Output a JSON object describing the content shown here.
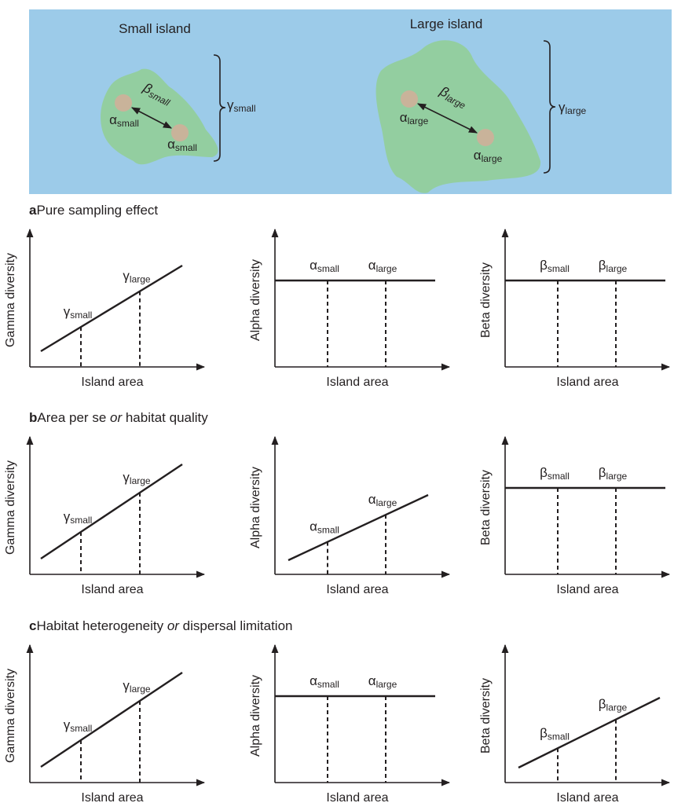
{
  "islands": {
    "small": {
      "title": "Small island",
      "alpha": {
        "symbol": "α",
        "sub": "small"
      },
      "beta": {
        "symbol": "β",
        "sub": "small"
      },
      "gamma": {
        "symbol": "γ",
        "sub": "small"
      }
    },
    "large": {
      "title": "Large island",
      "alpha": {
        "symbol": "α",
        "sub": "large"
      },
      "beta": {
        "symbol": "β",
        "sub": "large"
      },
      "gamma": {
        "symbol": "γ",
        "sub": "large"
      }
    }
  },
  "panels": [
    {
      "letter": "a",
      "title": [
        {
          "text": "Pure sampling effect"
        }
      ],
      "plots": [
        {
          "y_label": "Gamma diversity",
          "x_label": "Island area",
          "labels": [
            {
              "symbol": "γ",
              "sub": "small"
            },
            {
              "symbol": "γ",
              "sub": "large"
            }
          ]
        },
        {
          "y_label": "Alpha diversity",
          "x_label": "Island area",
          "labels": [
            {
              "symbol": "α",
              "sub": "small"
            },
            {
              "symbol": "α",
              "sub": "large"
            }
          ]
        },
        {
          "y_label": "Beta diversity",
          "x_label": "Island area",
          "labels": [
            {
              "symbol": "β",
              "sub": "small"
            },
            {
              "symbol": "β",
              "sub": "large"
            }
          ]
        }
      ]
    },
    {
      "letter": "b",
      "title": [
        {
          "text": "Area per se "
        },
        {
          "text": "or",
          "italic": true
        },
        {
          "text": " habitat quality"
        }
      ],
      "plots": [
        {
          "y_label": "Gamma diversity",
          "x_label": "Island area",
          "labels": [
            {
              "symbol": "γ",
              "sub": "small"
            },
            {
              "symbol": "γ",
              "sub": "large"
            }
          ]
        },
        {
          "y_label": "Alpha diversity",
          "x_label": "Island area",
          "labels": [
            {
              "symbol": "α",
              "sub": "small"
            },
            {
              "symbol": "α",
              "sub": "large"
            }
          ]
        },
        {
          "y_label": "Beta diversity",
          "x_label": "Island area",
          "labels": [
            {
              "symbol": "β",
              "sub": "small"
            },
            {
              "symbol": "β",
              "sub": "large"
            }
          ]
        }
      ]
    },
    {
      "letter": "c",
      "title": [
        {
          "text": "Habitat heterogeneity "
        },
        {
          "text": "or",
          "italic": true
        },
        {
          "text": " dispersal limitation"
        }
      ],
      "plots": [
        {
          "y_label": "Gamma diversity",
          "x_label": "Island area",
          "labels": [
            {
              "symbol": "γ",
              "sub": "small"
            },
            {
              "symbol": "γ",
              "sub": "large"
            }
          ]
        },
        {
          "y_label": "Alpha diversity",
          "x_label": "Island area",
          "labels": [
            {
              "symbol": "α",
              "sub": "small"
            },
            {
              "symbol": "α",
              "sub": "large"
            }
          ]
        },
        {
          "y_label": "Beta diversity",
          "x_label": "Island area",
          "labels": [
            {
              "symbol": "β",
              "sub": "small"
            },
            {
              "symbol": "β",
              "sub": "large"
            }
          ]
        }
      ]
    }
  ]
}
